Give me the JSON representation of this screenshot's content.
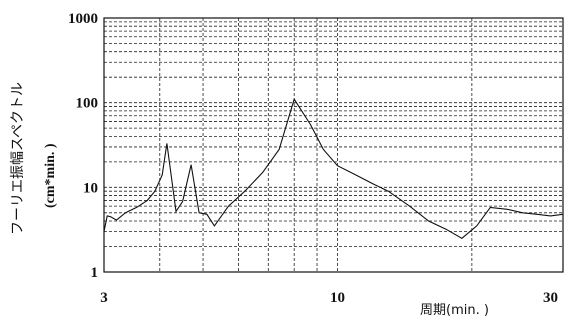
{
  "chart_data": {
    "type": "line",
    "title": "",
    "xlabel": "周期(min. )",
    "ylabel": "フーリエ振幅スペクトル",
    "ylabel_unit": "(cm*min. )",
    "x_scale": "log",
    "y_scale": "log",
    "xlim": [
      3,
      32
    ],
    "ylim": [
      1,
      1000
    ],
    "x_ticks": [
      3,
      10,
      30
    ],
    "y_ticks": [
      1,
      10,
      100,
      1000
    ],
    "grid": true,
    "grid_style": "dashed",
    "series": [
      {
        "color": "#111111",
        "x": [
          3.0,
          3.05,
          3.1,
          3.2,
          3.35,
          3.55,
          3.75,
          3.9,
          4.05,
          4.15,
          4.35,
          4.5,
          4.7,
          4.9,
          5.1,
          5.3,
          5.7,
          6.2,
          6.8,
          7.4,
          8.0,
          8.7,
          9.3,
          10.0,
          11.0,
          12.0,
          13.0,
          14.5,
          16.0,
          17.5,
          19.0,
          20.5,
          22.0,
          24.0,
          26.0,
          28.0,
          30.0,
          32.0
        ],
        "y": [
          3.0,
          4.6,
          4.5,
          4.1,
          5.0,
          5.8,
          7.0,
          9.0,
          14.0,
          33.0,
          5.2,
          6.8,
          18.5,
          5.0,
          4.8,
          3.5,
          6.0,
          9.0,
          15.0,
          28.0,
          110.0,
          55.0,
          28.0,
          18.0,
          14.0,
          11.0,
          9.0,
          6.0,
          4.0,
          3.2,
          2.5,
          3.5,
          5.8,
          5.5,
          5.0,
          4.8,
          4.6,
          4.8
        ]
      }
    ]
  }
}
